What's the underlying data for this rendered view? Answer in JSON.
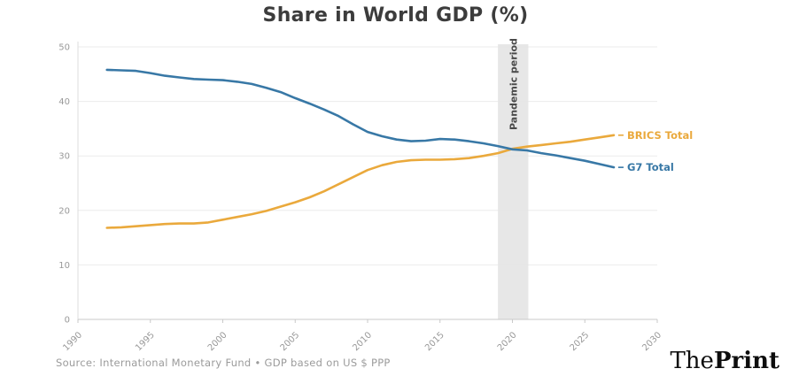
{
  "title": "Share in World GDP (%)",
  "footer": {
    "source": "Source: International Monetary Fund • GDP based on US $ PPP",
    "logo_prefix": "The",
    "logo_suffix": "Print"
  },
  "colors": {
    "brics_line": "#EAA93C",
    "g7_line": "#3878A6",
    "band_fill": "#E4E4E4",
    "band_label": "#4a4a4a",
    "axis_text": "#999999",
    "grid_line": "#ebebeb",
    "axis_line": "#c9c9c9",
    "title_text": "#3c3c3c"
  },
  "chart_data": {
    "type": "line",
    "title": "Share in World GDP (%)",
    "xlabel": "",
    "ylabel": "",
    "xlim": [
      1990,
      2030
    ],
    "ylim": [
      0,
      50
    ],
    "xticks": [
      1990,
      1995,
      2000,
      2005,
      2010,
      2015,
      2020,
      2025,
      2030
    ],
    "yticks": [
      0,
      10,
      20,
      30,
      40,
      50
    ],
    "grid": "horizontal",
    "legend_position": "end-of-line",
    "x": [
      1992,
      1993,
      1994,
      1995,
      1996,
      1997,
      1998,
      1999,
      2000,
      2001,
      2002,
      2003,
      2004,
      2005,
      2006,
      2007,
      2008,
      2009,
      2010,
      2011,
      2012,
      2013,
      2014,
      2015,
      2016,
      2017,
      2018,
      2019,
      2020,
      2021,
      2022,
      2023,
      2024,
      2025,
      2026,
      2027
    ],
    "series": [
      {
        "name": "BRICS Total",
        "color": "#EAA93C",
        "values": [
          16.8,
          16.9,
          17.1,
          17.3,
          17.5,
          17.6,
          17.6,
          17.8,
          18.3,
          18.8,
          19.3,
          19.9,
          20.7,
          21.5,
          22.4,
          23.5,
          24.8,
          26.1,
          27.4,
          28.3,
          28.9,
          29.2,
          29.3,
          29.3,
          29.4,
          29.6,
          30.0,
          30.5,
          31.3,
          31.7,
          32.0,
          32.3,
          32.6,
          33.0,
          33.4,
          33.8
        ]
      },
      {
        "name": "G7 Total",
        "color": "#3878A6",
        "values": [
          45.8,
          45.7,
          45.6,
          45.2,
          44.7,
          44.4,
          44.1,
          44.0,
          43.9,
          43.6,
          43.2,
          42.5,
          41.7,
          40.6,
          39.6,
          38.5,
          37.3,
          35.8,
          34.4,
          33.6,
          33.0,
          32.7,
          32.8,
          33.1,
          33.0,
          32.7,
          32.3,
          31.8,
          31.2,
          31.0,
          30.5,
          30.1,
          29.6,
          29.1,
          28.5,
          27.9
        ]
      }
    ],
    "annotation_band": {
      "label": "Pandemic period",
      "from": 2019,
      "to": 2021.1
    }
  }
}
